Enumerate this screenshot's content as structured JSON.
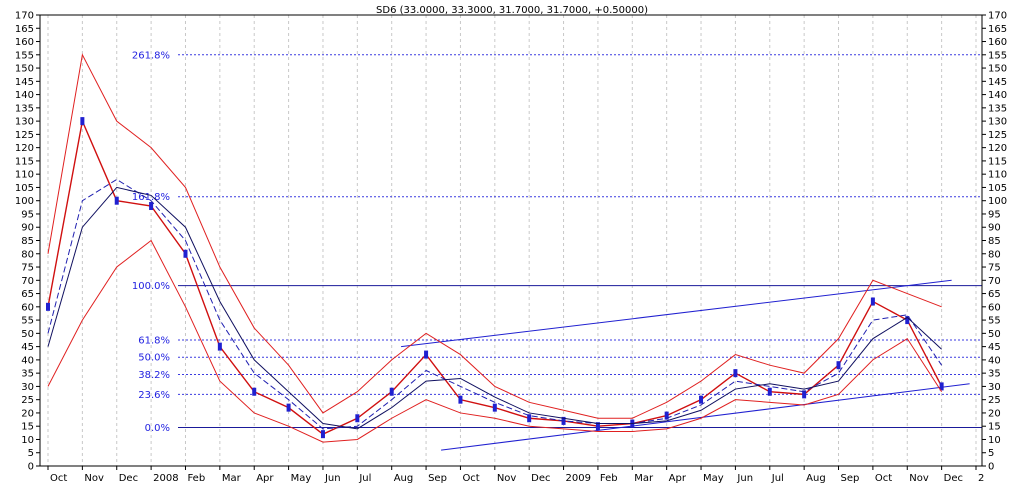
{
  "chart_data": {
    "type": "line",
    "title": "SD6 (33.0000, 33.3000, 31.7000, 31.7000, +0.50000)",
    "ylim": [
      0,
      170
    ],
    "y_ticks": [
      0,
      5,
      10,
      15,
      20,
      25,
      30,
      35,
      40,
      45,
      50,
      55,
      60,
      65,
      70,
      75,
      80,
      85,
      90,
      95,
      100,
      105,
      110,
      115,
      120,
      125,
      130,
      135,
      140,
      145,
      150,
      155,
      160,
      165,
      170
    ],
    "x_ticks": [
      "Oct",
      "Nov",
      "Dec",
      "2008",
      "Feb",
      "Mar",
      "Apr",
      "May",
      "Jun",
      "Jul",
      "Aug",
      "Sep",
      "Oct",
      "Nov",
      "Dec",
      "2009",
      "Feb",
      "Mar",
      "Apr",
      "May",
      "Jun",
      "Jul",
      "Aug",
      "Sep",
      "Oct",
      "Nov",
      "Dec",
      "2"
    ],
    "grid": true,
    "fib_levels": [
      {
        "label": "261.8%",
        "value": 155
      },
      {
        "label": "161.8%",
        "value": 101.5
      },
      {
        "label": "100.0%",
        "value": 68
      },
      {
        "label": "61.8%",
        "value": 47.5
      },
      {
        "label": "50.0%",
        "value": 41
      },
      {
        "label": "38.2%",
        "value": 34.5
      },
      {
        "label": "23.6%",
        "value": 27
      },
      {
        "label": "0.0%",
        "value": 14.5
      }
    ],
    "trend_lines": [
      {
        "from": [
          "Sep-2008 start",
          45
        ],
        "to": [
          "Dec-2009 end",
          70
        ]
      },
      {
        "from": [
          "Sep-2008 start",
          6
        ],
        "to": [
          "Dec-2009 end",
          31
        ]
      }
    ],
    "series": [
      {
        "x": [
          "Oct",
          "Nov",
          "Dec",
          "2008",
          "Feb",
          "Mar",
          "Apr",
          "May",
          "Jun",
          "Jul",
          "Aug",
          "Sep",
          "Oct",
          "Nov",
          "Dec",
          "2009",
          "Feb",
          "Mar",
          "Apr",
          "May",
          "Jun",
          "Jul",
          "Aug",
          "Sep",
          "Oct",
          "Nov",
          "Dec"
        ],
        "values": [
          60,
          130,
          100,
          98,
          80,
          45,
          28,
          22,
          12,
          18,
          28,
          42,
          25,
          22,
          18,
          17,
          15,
          16,
          19,
          25,
          35,
          28,
          27,
          38,
          62,
          55,
          30
        ],
        "style": "price"
      },
      {
        "values": [
          50,
          100,
          108,
          100,
          85,
          55,
          35,
          25,
          14,
          15,
          25,
          36,
          30,
          24,
          19,
          17,
          16,
          16,
          18,
          23,
          32,
          30,
          28,
          35,
          55,
          57,
          38
        ],
        "style": "ma-navy"
      },
      {
        "values": [
          45,
          90,
          105,
          102,
          90,
          62,
          40,
          28,
          16,
          14,
          22,
          32,
          33,
          26,
          20,
          18,
          16,
          16,
          17,
          21,
          29,
          31,
          29,
          32,
          48,
          56,
          44
        ],
        "style": "ma-dark"
      },
      {
        "values": [
          80,
          155,
          130,
          120,
          105,
          75,
          52,
          38,
          20,
          28,
          40,
          50,
          42,
          30,
          24,
          21,
          18,
          18,
          24,
          32,
          42,
          38,
          35,
          48,
          70,
          65,
          60
        ],
        "style": "band-upper"
      },
      {
        "values": [
          30,
          55,
          75,
          85,
          60,
          32,
          20,
          15,
          9,
          10,
          18,
          25,
          20,
          18,
          15,
          14,
          13,
          13,
          14,
          18,
          25,
          24,
          23,
          27,
          40,
          48,
          28
        ],
        "style": "band-lower"
      }
    ]
  }
}
